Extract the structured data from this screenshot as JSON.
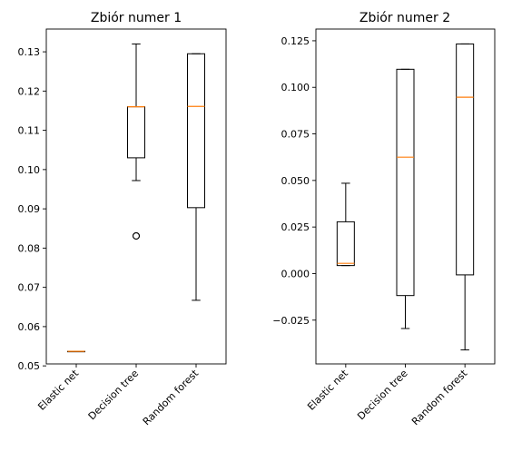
{
  "chart_data": [
    {
      "type": "boxplot",
      "title": "Zbiór numer 1",
      "xlabel": "",
      "ylabel": "",
      "categories": [
        "Elastic net",
        "Decision tree",
        "Random forest"
      ],
      "ylim": [
        0.0505,
        0.1358
      ],
      "yticks": [
        "0.05",
        "0.06",
        "0.07",
        "0.08",
        "0.09",
        "0.10",
        "0.11",
        "0.12",
        "0.13"
      ],
      "yticks_values": [
        0.05,
        0.06,
        0.07,
        0.08,
        0.09,
        0.1,
        0.11,
        0.12,
        0.13
      ],
      "boxes": [
        {
          "label": "Elastic net",
          "whislo": 0.0537,
          "q1": 0.0537,
          "med": 0.0537,
          "q3": 0.0537,
          "whishi": 0.0537,
          "fliers": []
        },
        {
          "label": "Decision tree",
          "whislo": 0.0972,
          "q1": 0.103,
          "med": 0.116,
          "q3": 0.116,
          "whishi": 0.132,
          "fliers": [
            0.0831,
            0.0831
          ]
        },
        {
          "label": "Random forest",
          "whislo": 0.0667,
          "q1": 0.0903,
          "med": 0.1161,
          "q3": 0.1295,
          "whishi": 0.1295,
          "fliers": []
        }
      ]
    },
    {
      "type": "boxplot",
      "title": "Zbiór numer 2",
      "xlabel": "",
      "ylabel": "",
      "categories": [
        "Elastic net",
        "Decision tree",
        "Random forest"
      ],
      "ylim": [
        -0.0485,
        0.1313
      ],
      "yticks": [
        "−0.025",
        "0.000",
        "0.025",
        "0.050",
        "0.075",
        "0.100",
        "0.125"
      ],
      "yticks_values": [
        -0.025,
        0.0,
        0.025,
        0.05,
        0.075,
        0.1,
        0.125
      ],
      "boxes": [
        {
          "label": "Elastic net",
          "whislo": 0.0043,
          "q1": 0.0043,
          "med": 0.0055,
          "q3": 0.0278,
          "whishi": 0.0485,
          "fliers": []
        },
        {
          "label": "Decision tree",
          "whislo": -0.0295,
          "q1": -0.0118,
          "med": 0.0625,
          "q3": 0.1097,
          "whishi": 0.1097,
          "fliers": []
        },
        {
          "label": "Random forest",
          "whislo": -0.041,
          "q1": -0.0007,
          "med": 0.0947,
          "q3": 0.1233,
          "whishi": 0.1233,
          "fliers": []
        }
      ]
    }
  ]
}
